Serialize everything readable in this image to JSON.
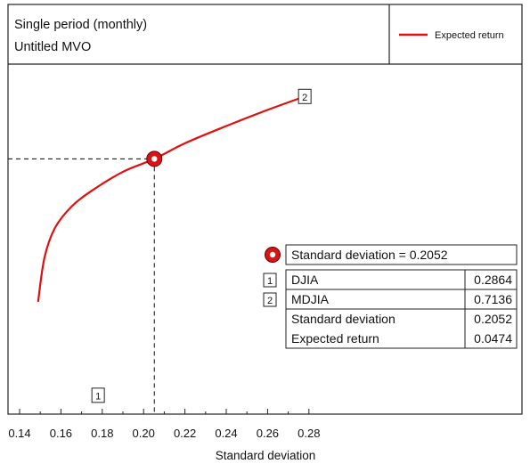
{
  "header": {
    "line1": "Single period (monthly)",
    "line2": "Untitled MVO"
  },
  "chart_data": {
    "type": "line",
    "xlabel": "Standard deviation",
    "ylabel": "",
    "xlim": [
      0.135,
      0.292
    ],
    "x_ticks": [
      "0.14",
      "0.16",
      "0.18",
      "0.20",
      "0.22",
      "0.24",
      "0.26",
      "0.28"
    ],
    "series": [
      {
        "name": "Expected return",
        "color": "#e01010",
        "x": [
          0.149,
          0.152,
          0.157,
          0.165,
          0.175,
          0.19,
          0.2052,
          0.22,
          0.24,
          0.26,
          0.278
        ],
        "y": [
          0.021,
          0.029,
          0.0345,
          0.0385,
          0.0415,
          0.045,
          0.0474,
          0.0503,
          0.0535,
          0.0565,
          0.059
        ]
      }
    ],
    "ylim": [
      0.0,
      0.065
    ],
    "legend_position": "top-right",
    "selected_point": {
      "x": 0.2052,
      "y": 0.0474
    },
    "markers": [
      {
        "label": "1",
        "x": 0.178,
        "y": 0.0035
      },
      {
        "label": "2",
        "x": 0.278,
        "y": 0.059
      }
    ],
    "info_table": {
      "title": "Standard deviation = 0.2052",
      "rows": [
        {
          "key": "1",
          "name": "DJIA",
          "value": "0.2864"
        },
        {
          "key": "2",
          "name": "MDJIA",
          "value": "0.7136"
        },
        {
          "key": "",
          "name": "Standard deviation",
          "value": "0.2052"
        },
        {
          "key": "",
          "name": "Expected return",
          "value": "0.0474"
        }
      ]
    }
  }
}
